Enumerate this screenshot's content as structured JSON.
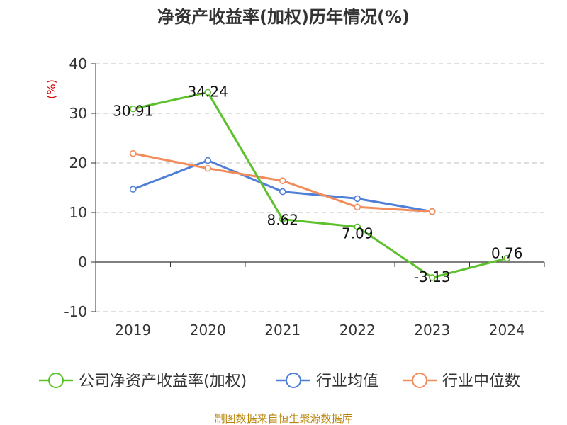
{
  "chart_data": {
    "type": "line",
    "title": "净资产收益率(加权)历年情况(%)",
    "ylabel": "(%)",
    "xlabel": "",
    "categories": [
      "2019",
      "2020",
      "2021",
      "2022",
      "2023",
      "2024"
    ],
    "ylim": [
      -10,
      40
    ],
    "yticks": [
      -10,
      0,
      10,
      20,
      30,
      40
    ],
    "grid": true,
    "legend_position": "bottom",
    "series": [
      {
        "name": "公司净资产收益率(加权)",
        "color": "#5dc12d",
        "values": [
          30.91,
          34.24,
          8.62,
          7.09,
          -3.13,
          0.76
        ],
        "labels": [
          "30.91",
          "34.24",
          "8.62",
          "7.09",
          "-3.13",
          "0.76"
        ]
      },
      {
        "name": "行业均值",
        "color": "#4f7fd6",
        "values": [
          14.7,
          20.5,
          14.2,
          12.8,
          10.2,
          null
        ]
      },
      {
        "name": "行业中位数",
        "color": "#f28c5a",
        "values": [
          21.9,
          18.9,
          16.4,
          11.1,
          10.2,
          null
        ]
      }
    ],
    "source": "制图数据来自恒生聚源数据库"
  }
}
